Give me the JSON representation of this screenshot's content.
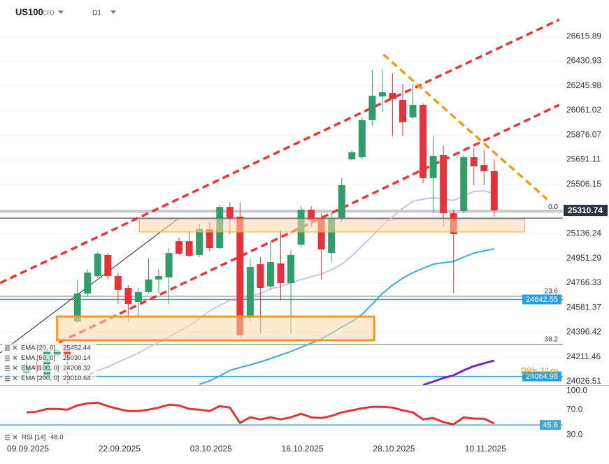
{
  "chart_data": {
    "type": "candlestick",
    "title": "US100",
    "subtitle": "CFD",
    "timeframe": "D1",
    "countdown": "08h 11m",
    "categories": [
      "09.09.2025",
      null,
      null,
      null,
      null,
      null,
      null,
      null,
      null,
      "22.09.2025",
      null,
      null,
      null,
      null,
      null,
      null,
      null,
      null,
      "03.10.2025",
      null,
      null,
      null,
      null,
      null,
      null,
      null,
      null,
      "16.10.2025",
      null,
      null,
      null,
      null,
      null,
      null,
      null,
      null,
      "28.10.2025",
      null,
      null,
      null,
      null,
      null,
      null,
      null,
      null,
      "10.11.2025",
      null
    ],
    "up_color": "#2f9e68",
    "down_color": "#e5333d",
    "candles": {
      "open": [
        24090,
        24150,
        24050,
        24220,
        24265,
        24477,
        24687,
        24818,
        24976,
        24818,
        24729,
        24624,
        24698,
        24792,
        24808,
        25080,
        25080,
        24976,
        25170,
        25028,
        25337,
        25264,
        24504,
        24907,
        24740,
        24913,
        24766,
        25054,
        25316,
        25254,
        24991,
        25254,
        25694,
        25710,
        25988,
        26166,
        26192,
        26140,
        26009,
        26103,
        25553,
        25726,
        25290,
        25306,
        25710,
        25652,
        25605
      ],
      "high": [
        24180,
        24200,
        24280,
        24290,
        24280,
        24792,
        24871,
        25002,
        24991,
        24844,
        24750,
        24729,
        24949,
        24871,
        25028,
        25107,
        25159,
        25212,
        25222,
        25353,
        25369,
        25369,
        24949,
        24960,
        25080,
        25159,
        25012,
        25343,
        25343,
        25290,
        25290,
        25553,
        25762,
        26009,
        26365,
        26365,
        26339,
        26261,
        26261,
        26114,
        25867,
        25799,
        25316,
        25726,
        25778,
        25762,
        25694
      ],
      "low": [
        24060,
        24090,
        24030,
        24200,
        24010,
        24467,
        24661,
        24803,
        24792,
        24608,
        24477,
        24503,
        24687,
        24687,
        24608,
        24976,
        24960,
        24960,
        25002,
        25018,
        25133,
        24357,
        24477,
        24383,
        24713,
        24635,
        24383,
        25028,
        25185,
        24792,
        24923,
        25222,
        25684,
        25694,
        25946,
        26051,
        25867,
        25867,
        25998,
        25516,
        25290,
        25185,
        24687,
        25290,
        25500,
        25500,
        25264
      ],
      "close": [
        24150,
        24120,
        24260,
        24265,
        24225,
        24687,
        24844,
        24986,
        24818,
        24713,
        24608,
        24698,
        24792,
        24818,
        24991,
        24986,
        24970,
        25170,
        25028,
        25337,
        25254,
        24372,
        24886,
        24729,
        24923,
        24766,
        24976,
        25316,
        25238,
        25018,
        25254,
        25500,
        25747,
        25988,
        26171,
        26198,
        26145,
        25972,
        26103,
        25553,
        25720,
        25290,
        25133,
        25710,
        25642,
        25605,
        25310.74
      ]
    },
    "series": [
      {
        "name": "EMA [20, 0]",
        "last": 25452.44,
        "color": "#c9c4e8",
        "width": 2,
        "values": [
          null,
          null,
          null,
          null,
          24016,
          24042,
          24073,
          24110,
          24136,
          24173,
          24205,
          24241,
          24283,
          24320,
          24362,
          24404,
          24446,
          24498,
          24556,
          24598,
          24635,
          24635,
          24671,
          24687,
          24724,
          24740,
          24766,
          24792,
          24813,
          24834,
          24865,
          24907,
          24970,
          25044,
          25117,
          25196,
          25264,
          25327,
          25379,
          25395,
          25406,
          25395,
          25385,
          25421,
          25453,
          25458,
          25437
        ]
      },
      {
        "name": "EMA [50, 0]",
        "last": 25030.14,
        "color": "#3aa9d9",
        "width": 2,
        "values": [
          null,
          null,
          null,
          null,
          null,
          null,
          null,
          null,
          null,
          null,
          null,
          null,
          null,
          null,
          null,
          null,
          null,
          24005,
          24031,
          24068,
          24110,
          24131,
          24152,
          24173,
          24199,
          24226,
          24252,
          24283,
          24315,
          24346,
          24388,
          24435,
          24477,
          24530,
          24608,
          24687,
          24750,
          24802,
          24844,
          24876,
          24907,
          24918,
          24928,
          24960,
          24991,
          25007,
          25023
        ]
      },
      {
        "name": "EMA [100, 0]",
        "last": 24208.32,
        "color": "#6a2cc0",
        "width": 3,
        "values": [
          null,
          null,
          null,
          null,
          null,
          null,
          null,
          null,
          null,
          null,
          null,
          null,
          null,
          null,
          null,
          null,
          null,
          null,
          null,
          null,
          null,
          null,
          null,
          null,
          null,
          null,
          null,
          null,
          null,
          null,
          null,
          null,
          null,
          null,
          null,
          null,
          null,
          null,
          null,
          24000,
          24026,
          24052,
          24073,
          24110,
          24142,
          24163,
          24184
        ]
      },
      {
        "name": "EMA [200, 0]",
        "last": 23010.64,
        "color": "#1c5fa8",
        "width": 2,
        "values": [
          null,
          null,
          null,
          null,
          null,
          null,
          null,
          null,
          null,
          null,
          null,
          null,
          null,
          null,
          null,
          null,
          null,
          null,
          null,
          null,
          null,
          null,
          null,
          null,
          null,
          null,
          null,
          null,
          null,
          null,
          null,
          null,
          null,
          null,
          null,
          null,
          null,
          null,
          null,
          null,
          null,
          null,
          null,
          null,
          null,
          null,
          null
        ]
      }
    ],
    "ylim": [
      24000,
      26890
    ],
    "yticks": [
      26615.89,
      26430.93,
      26245.98,
      26061.02,
      25876.07,
      25691.11,
      25506.15,
      25136.24,
      24951.29,
      24766.33,
      24581.37,
      24396.42,
      24211.46,
      24026.51
    ],
    "grid": true,
    "current_price": 25310.74,
    "levels": [
      {
        "value": 24642.55,
        "color": "#2a9fe0"
      },
      {
        "value": 24064.98,
        "color": "#2a9fe0"
      }
    ],
    "hlines": [
      {
        "price": 25253,
        "color": "#222222"
      }
    ],
    "fib_levels": [
      {
        "label": "0.0",
        "price": 25300
      },
      {
        "label": "23.6",
        "price": 24666
      },
      {
        "label": "38.2",
        "price": 24304
      }
    ],
    "trendlines": [
      {
        "from": [
          -2.6,
          24766
        ],
        "to": [
          52.4,
          26743
        ],
        "color": "#e23a3a",
        "dashed": true
      },
      {
        "from": [
          3.2,
          24320
        ],
        "to": [
          52.4,
          26103
        ],
        "color": "#e23a3a",
        "dashed": true
      },
      {
        "from": [
          35.1,
          26481
        ],
        "to": [
          51.2,
          25395
        ],
        "color": "#f39a1e",
        "dashed": true
      },
      {
        "from": [
          -2.6,
          24241
        ],
        "to": [
          14.9,
          25248
        ],
        "color": "#222222",
        "dashed": false
      }
    ],
    "zones": [
      {
        "from": [
          11.1,
          25243
        ],
        "to": [
          49.0,
          25149
        ],
        "color": "#f3a64a",
        "border": 1
      },
      {
        "from": [
          3.0,
          24514
        ],
        "to": [
          34.2,
          24336
        ],
        "color": "#f39a1e",
        "border": 3
      }
    ],
    "rsi": {
      "name": "RSI [14]",
      "last_label": "48.0",
      "color": "#e0333a",
      "values": [
        65.6,
        66.7,
        71.1,
        71.1,
        70.0,
        76.7,
        80.0,
        81.1,
        75.6,
        71.1,
        67.8,
        67.8,
        70.0,
        73.3,
        77.8,
        76.7,
        71.1,
        70.0,
        67.8,
        75.6,
        73.3,
        48.9,
        57.8,
        54.4,
        57.8,
        54.4,
        57.8,
        63.3,
        57.8,
        56.7,
        60.0,
        65.6,
        68.9,
        72.2,
        74.4,
        74.4,
        73.3,
        68.9,
        65.6,
        54.4,
        56.7,
        50.0,
        46.7,
        57.8,
        55.6,
        55.6,
        48
      ],
      "level": 45.6,
      "level_color": "#41a7df",
      "ylim": [
        19,
        107
      ],
      "yticks": [
        {
          "value": 100,
          "label": "100.0"
        },
        {
          "value": 70,
          "label": "70.0"
        },
        {
          "value": 30,
          "label": "30.0"
        }
      ]
    }
  }
}
